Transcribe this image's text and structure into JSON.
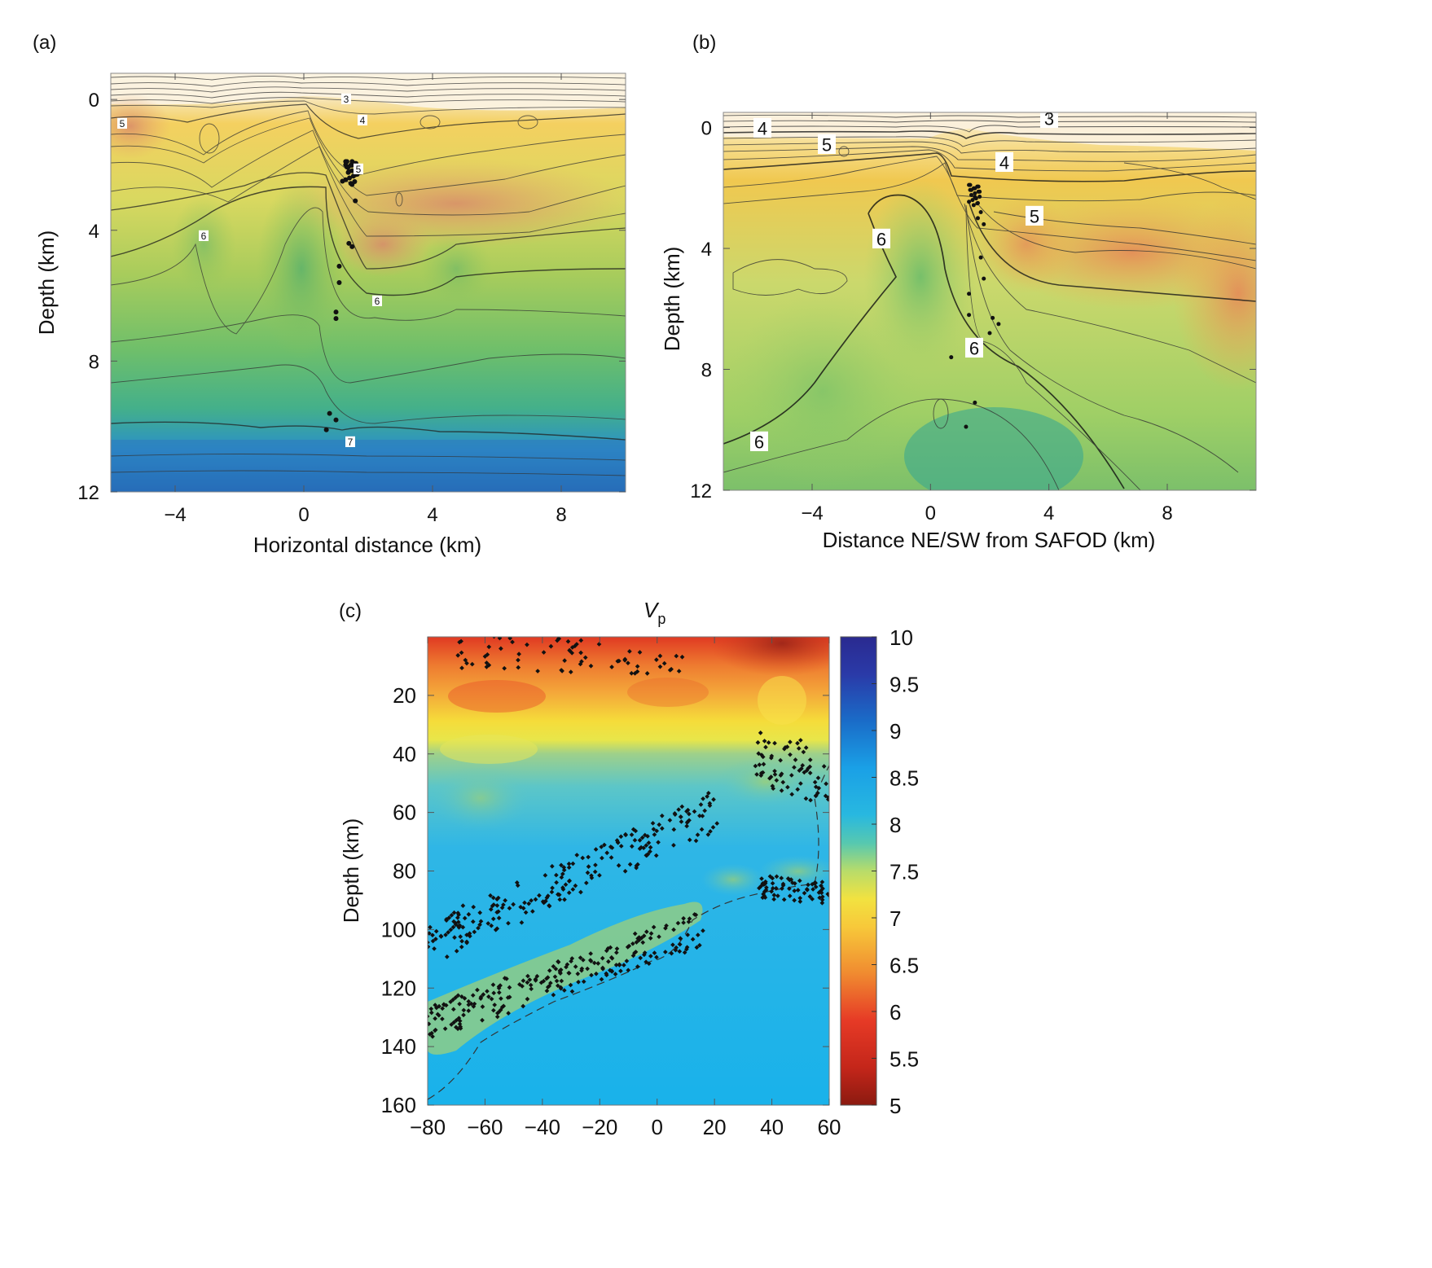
{
  "panels": {
    "a": {
      "label": "(a)",
      "xlabel": "Horizontal distance (km)",
      "ylabel": "Depth (km)",
      "xticks": [
        "−4",
        "0",
        "4",
        "8"
      ],
      "yticks": [
        "0",
        "4",
        "8",
        "12"
      ],
      "contour_labels": [
        "3",
        "4",
        "5",
        "5",
        "6",
        "6",
        "7"
      ]
    },
    "b": {
      "label": "(b)",
      "xlabel": "Distance NE/SW from SAFOD (km)",
      "ylabel": "Depth (km)",
      "xticks": [
        "−4",
        "0",
        "4",
        "8"
      ],
      "yticks": [
        "0",
        "4",
        "8",
        "12"
      ],
      "contour_labels": [
        "3",
        "4",
        "4",
        "5",
        "5",
        "6",
        "6",
        "6"
      ]
    },
    "c": {
      "label": "(c)",
      "title_main": "V",
      "title_sub": "p",
      "ylabel": "Depth (km)",
      "xticks": [
        "−80",
        "−60",
        "−40",
        "−20",
        "0",
        "20",
        "40",
        "60"
      ],
      "yticks": [
        "20",
        "40",
        "60",
        "80",
        "100",
        "120",
        "140",
        "160"
      ],
      "colorbar_ticks": [
        "10",
        "9.5",
        "9",
        "8.5",
        "8",
        "7.5",
        "7",
        "6.5",
        "6",
        "5.5",
        "5"
      ]
    }
  },
  "chart_data": [
    {
      "type": "heatmap",
      "panel": "a",
      "xlabel": "Horizontal distance (km)",
      "ylabel": "Depth (km)",
      "xlim": [
        -6,
        10
      ],
      "ylim": [
        12,
        -0.8
      ],
      "xticks": [
        -4,
        0,
        4,
        8
      ],
      "yticks": [
        0,
        4,
        8,
        12
      ],
      "contour_levels": [
        3,
        4,
        5,
        6,
        7
      ],
      "seismicity": [
        [
          1.3,
          2.0
        ],
        [
          1.4,
          2.2
        ],
        [
          1.5,
          1.9
        ],
        [
          1.6,
          2.3
        ],
        [
          1.2,
          2.5
        ],
        [
          1.5,
          2.6
        ],
        [
          1.6,
          3.1
        ],
        [
          1.4,
          4.4
        ],
        [
          1.5,
          4.5
        ],
        [
          1.1,
          5.1
        ],
        [
          1.1,
          5.6
        ],
        [
          1.0,
          6.5
        ],
        [
          1.0,
          6.7
        ],
        [
          0.8,
          9.6
        ],
        [
          1.0,
          9.8
        ],
        [
          0.7,
          10.1
        ]
      ]
    },
    {
      "type": "heatmap",
      "panel": "b",
      "xlabel": "Distance NE/SW from SAFOD (km)",
      "ylabel": "Depth (km)",
      "xlim": [
        -7,
        11
      ],
      "ylim": [
        12,
        -0.5
      ],
      "xticks": [
        -4,
        0,
        4,
        8
      ],
      "yticks": [
        0,
        4,
        8,
        12
      ],
      "contour_levels": [
        3,
        4,
        5,
        6
      ],
      "seismicity": [
        [
          1.5,
          2.3
        ],
        [
          1.6,
          2.5
        ],
        [
          1.7,
          2.8
        ],
        [
          1.6,
          3.0
        ],
        [
          1.8,
          3.2
        ],
        [
          1.7,
          4.3
        ],
        [
          1.8,
          5.0
        ],
        [
          1.3,
          5.5
        ],
        [
          1.3,
          6.2
        ],
        [
          2.1,
          6.3
        ],
        [
          2.3,
          6.5
        ],
        [
          2.0,
          6.8
        ],
        [
          1.6,
          7.4
        ],
        [
          0.7,
          7.6
        ],
        [
          1.5,
          9.1
        ],
        [
          1.2,
          9.9
        ]
      ]
    },
    {
      "type": "heatmap",
      "panel": "c",
      "title": "Vp",
      "ylabel": "Depth (km)",
      "xlim": [
        -80,
        60
      ],
      "ylim": [
        160,
        0
      ],
      "xticks": [
        -80,
        -60,
        -40,
        -20,
        0,
        20,
        40,
        60
      ],
      "yticks": [
        20,
        40,
        60,
        80,
        100,
        120,
        140,
        160
      ],
      "colorbar": {
        "min": 5,
        "max": 10,
        "ticks": [
          5,
          5.5,
          6,
          6.5,
          7,
          7.5,
          8,
          8.5,
          9,
          9.5,
          10
        ]
      },
      "seismicity_bands": [
        {
          "x0": -80,
          "y0": 105,
          "x1": 20,
          "y1": 60,
          "spread": 7
        },
        {
          "x0": -80,
          "y0": 132,
          "x1": 15,
          "y1": 100,
          "spread": 6
        },
        {
          "x0": -70,
          "y0": 5,
          "x1": 10,
          "y1": 8,
          "spread": 6
        },
        {
          "x0": 35,
          "y0": 40,
          "x1": 60,
          "y1": 50,
          "spread": 10
        },
        {
          "x0": 35,
          "y0": 85,
          "x1": 60,
          "y1": 88,
          "spread": 4
        }
      ]
    }
  ]
}
